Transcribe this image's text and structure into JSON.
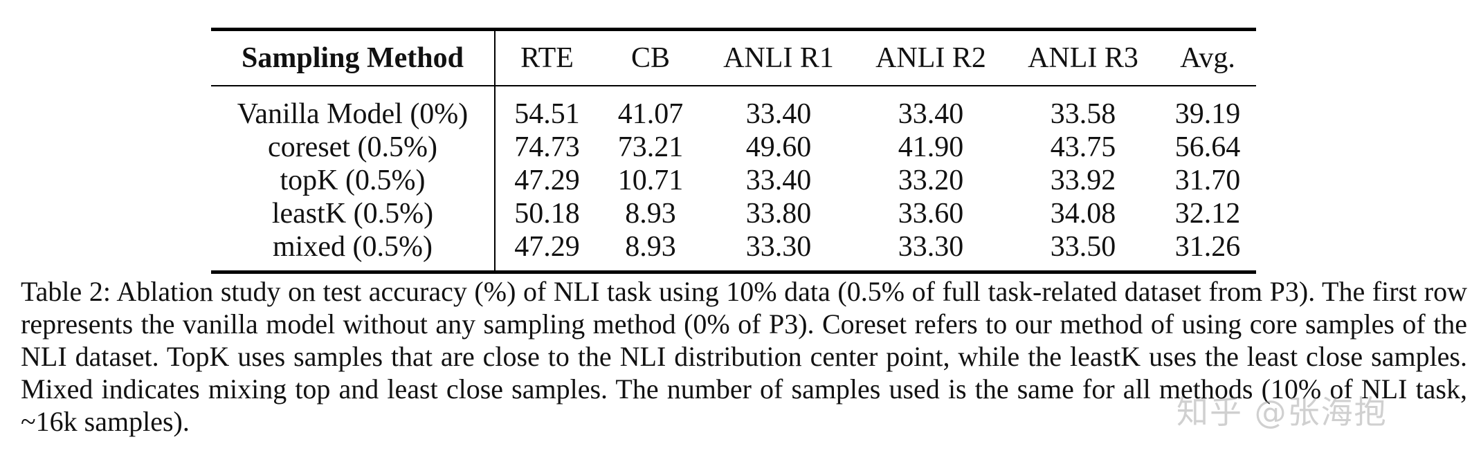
{
  "table": {
    "columns": [
      "Sampling Method",
      "RTE",
      "CB",
      "ANLI R1",
      "ANLI R2",
      "ANLI R3",
      "Avg."
    ],
    "rows": [
      {
        "method": "Vanilla Model (0%)",
        "values": [
          "54.51",
          "41.07",
          "33.40",
          "33.40",
          "33.58",
          "39.19"
        ]
      },
      {
        "method": "coreset (0.5%)",
        "values": [
          "74.73",
          "73.21",
          "49.60",
          "41.90",
          "43.75",
          "56.64"
        ]
      },
      {
        "method": "topK (0.5%)",
        "values": [
          "47.29",
          "10.71",
          "33.40",
          "33.20",
          "33.92",
          "31.70"
        ]
      },
      {
        "method": "leastK (0.5%)",
        "values": [
          "50.18",
          "8.93",
          "33.80",
          "33.60",
          "34.08",
          "32.12"
        ]
      },
      {
        "method": "mixed (0.5%)",
        "values": [
          "47.29",
          "8.93",
          "33.30",
          "33.30",
          "33.50",
          "31.26"
        ]
      }
    ]
  },
  "caption": {
    "label": "Table 2:",
    "text": "Ablation study on test accuracy (%) of NLI task using 10% data (0.5% of full task-related dataset from P3). The first row represents the vanilla model without any sampling method (0% of P3). Coreset refers to our method of using core samples of the NLI dataset. TopK uses samples that are close to the NLI distribution center point, while the leastK uses the least close samples. Mixed indicates mixing top and least close samples. The number of samples used is the same for all methods (10% of NLI task, ~16k samples)."
  },
  "watermark": "知乎 @张海抱"
}
